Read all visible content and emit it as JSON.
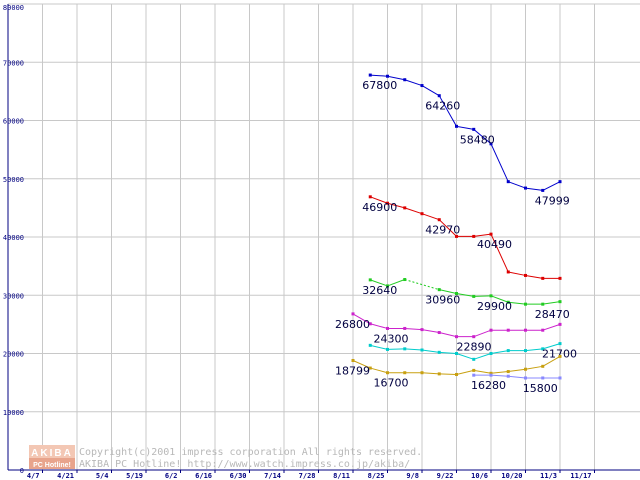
{
  "chart_data": {
    "type": "line",
    "x_ticks": [
      "4/7",
      "4/21",
      "5/4",
      "5/19",
      "6/2",
      "6/16",
      "6/30",
      "7/14",
      "7/28",
      "8/11",
      "8/25",
      "9/8",
      "9/22",
      "10/6",
      "10/20",
      "11/3",
      "11/17"
    ],
    "y_ticks": [
      "0",
      "10000",
      "20000",
      "30000",
      "40000",
      "50000",
      "60000",
      "70000",
      "80000"
    ],
    "ylim": [
      0,
      80000
    ],
    "grid": true,
    "x_index": [
      10,
      10.5,
      11,
      11.5,
      12,
      12.5,
      13,
      13.5,
      14,
      14.5,
      15,
      15.5,
      16,
      16.5
    ],
    "series": [
      {
        "color": "#0000cc",
        "values": [
          null,
          67800,
          67600,
          67000,
          66000,
          64260,
          59000,
          58480,
          56000,
          49500,
          48400,
          47999,
          49500,
          null
        ],
        "labels": [
          {
            "i": 1,
            "text": "67800",
            "dx": -8,
            "dy": 14
          },
          {
            "i": 5,
            "text": "64260",
            "dx": -14,
            "dy": 14
          },
          {
            "i": 7,
            "text": "58480",
            "dx": -14,
            "dy": 14
          },
          {
            "i": 11,
            "text": "47999",
            "dx": -8,
            "dy": 14
          }
        ]
      },
      {
        "color": "#dd0000",
        "values": [
          null,
          46900,
          45800,
          45000,
          44000,
          42970,
          40100,
          40100,
          40490,
          34000,
          33400,
          32900,
          32900,
          null
        ],
        "labels": [
          {
            "i": 1,
            "text": "46900",
            "dx": -8,
            "dy": 14
          },
          {
            "i": 5,
            "text": "42970",
            "dx": -14,
            "dy": 14
          },
          {
            "i": 8,
            "text": "40490",
            "dx": -14,
            "dy": 14
          }
        ]
      },
      {
        "color": "#22cc22",
        "values": [
          null,
          32640,
          31600,
          32700,
          null,
          30960,
          30300,
          29800,
          29900,
          28800,
          28470,
          28470,
          28900,
          null
        ],
        "labels": [
          {
            "i": 1,
            "text": "32640",
            "dx": -8,
            "dy": 14
          },
          {
            "i": 5,
            "text": "30960",
            "dx": -14,
            "dy": 14
          },
          {
            "i": 8,
            "text": "29900",
            "dx": -14,
            "dy": 14
          },
          {
            "i": 11,
            "text": "28470",
            "dx": -8,
            "dy": 14
          }
        ]
      },
      {
        "color": "#cc22cc",
        "values": [
          26800,
          25100,
          24300,
          24300,
          24100,
          23600,
          22890,
          22890,
          24000,
          24000,
          24000,
          24000,
          25000,
          null
        ],
        "labels": [
          {
            "i": 0,
            "text": "26800",
            "dx": -18,
            "dy": 14
          },
          {
            "i": 2,
            "text": "24300",
            "dx": -14,
            "dy": 14
          },
          {
            "i": 6,
            "text": "22890",
            "dx": 0,
            "dy": 14
          }
        ]
      },
      {
        "color": "#00cccc",
        "values": [
          null,
          21400,
          20700,
          20800,
          20600,
          20200,
          20000,
          19000,
          20000,
          20500,
          20500,
          20800,
          21700,
          null
        ],
        "labels": [
          {
            "i": 12,
            "text": "21700",
            "dx": -18,
            "dy": 14
          }
        ]
      },
      {
        "color": "#c8a010",
        "values": [
          18799,
          17500,
          16700,
          16700,
          16700,
          16500,
          16400,
          17100,
          16600,
          16900,
          17300,
          17800,
          19500,
          null
        ],
        "labels": [
          {
            "i": 0,
            "text": "18799",
            "dx": -18,
            "dy": 14
          },
          {
            "i": 2,
            "text": "16700",
            "dx": -14,
            "dy": 14
          }
        ]
      },
      {
        "color": "#8888ff",
        "values": [
          null,
          null,
          null,
          null,
          null,
          null,
          null,
          16280,
          16280,
          16100,
          15800,
          15800,
          15800,
          null
        ],
        "labels": [
          {
            "i": 8,
            "text": "16280",
            "dx": -20,
            "dy": 14
          },
          {
            "i": 11,
            "text": "15800",
            "dx": -20,
            "dy": 14
          }
        ]
      }
    ]
  },
  "watermark": {
    "logo_top": "AKIBA",
    "logo_bottom": "PC Hotline!",
    "line1": "Copyright(c)2001 impress corporation All rights reserved.",
    "line2": "AKIBA PC Hotline!  http://www.watch.impress.co.jp/akiba/"
  }
}
